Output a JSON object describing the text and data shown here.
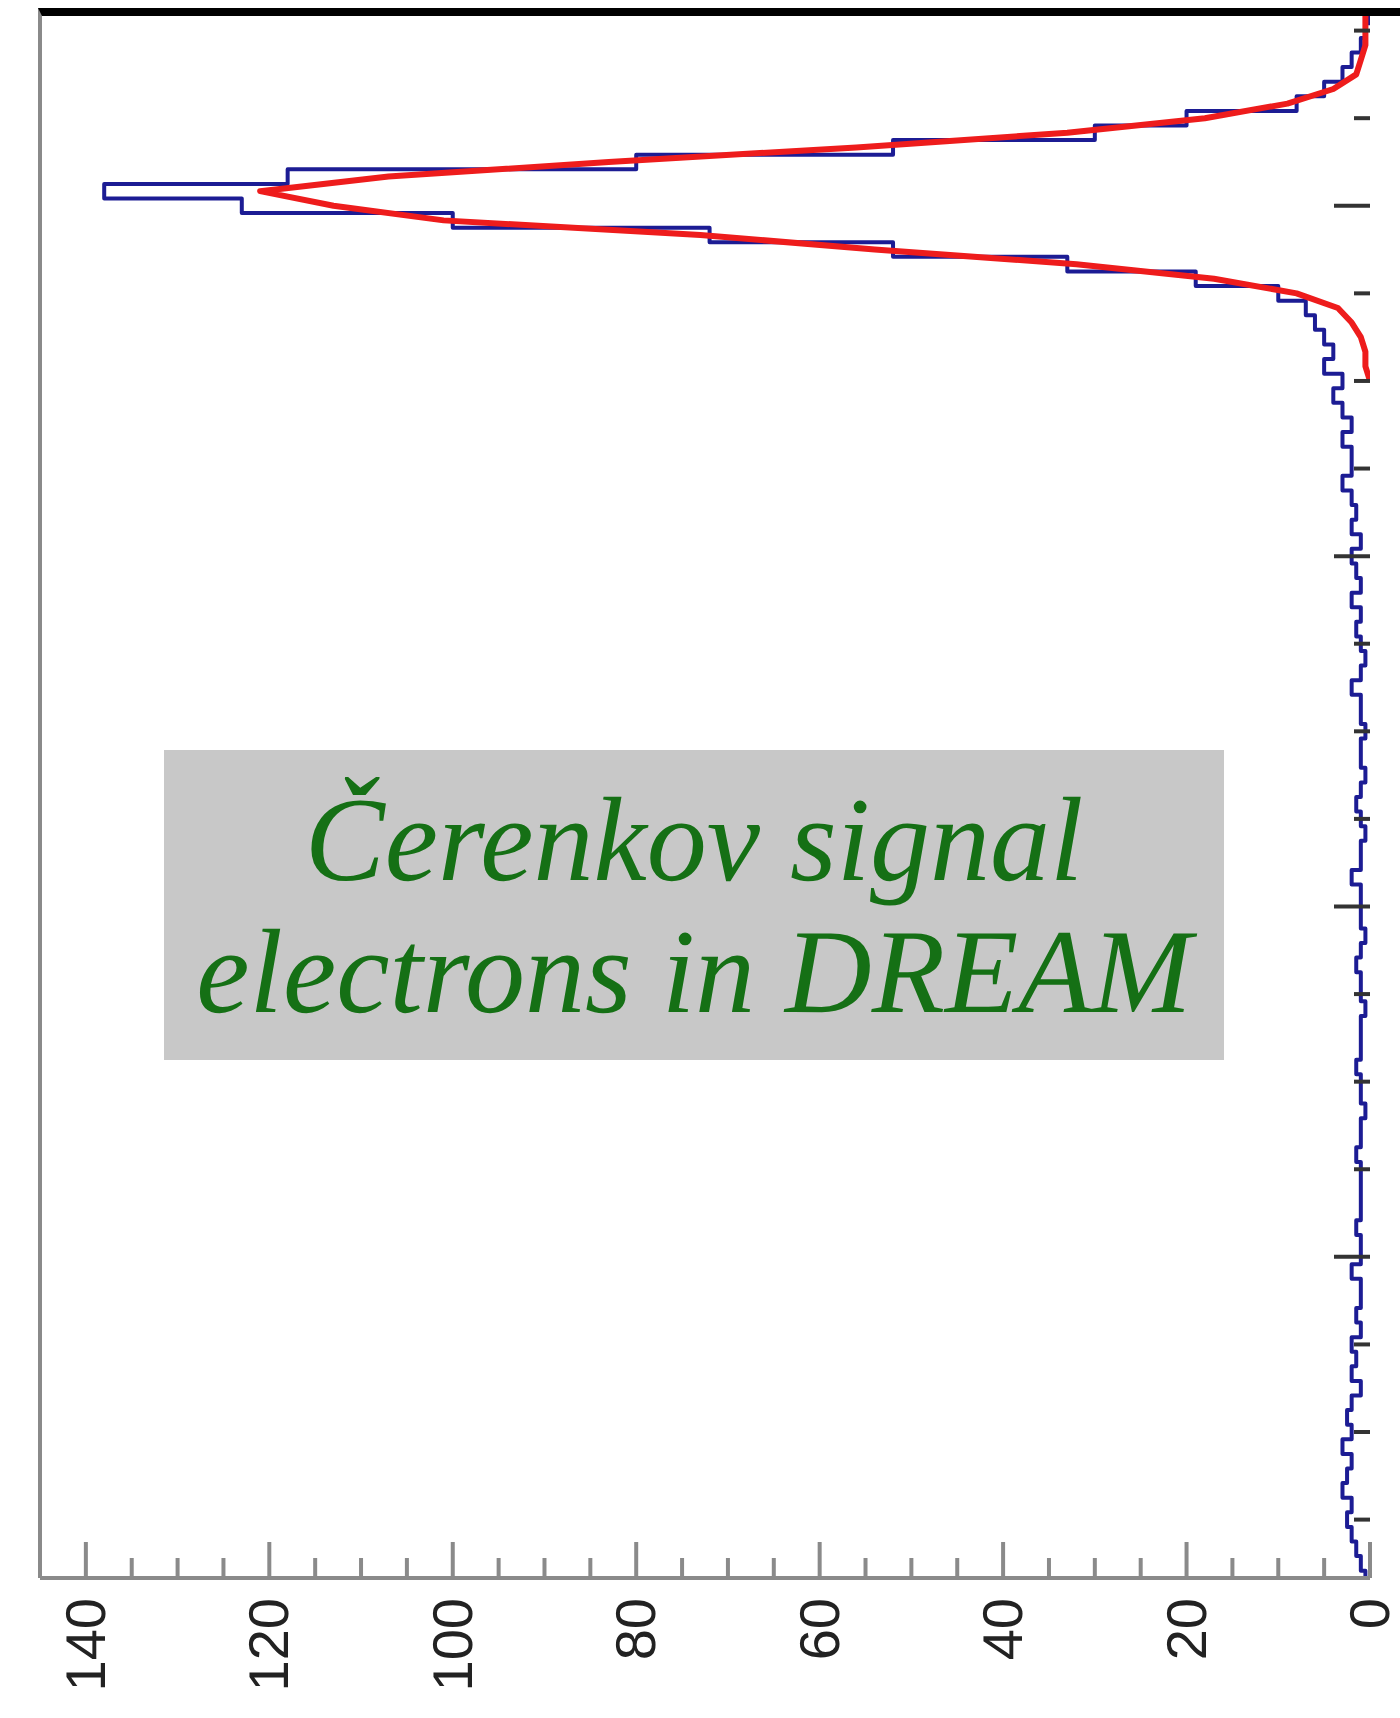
{
  "chart_data": {
    "type": "step",
    "orientation": "horizontal",
    "categories": [
      null,
      null,
      null,
      null,
      null,
      null,
      null,
      null,
      null,
      null,
      null,
      null,
      null,
      null,
      null,
      null,
      null,
      null,
      null,
      null,
      null,
      null,
      null,
      null,
      null,
      null,
      null,
      null,
      null,
      null,
      null,
      null,
      null,
      null,
      null,
      null,
      null,
      null,
      null,
      null,
      null,
      null,
      null,
      null,
      null,
      null,
      null,
      null,
      null,
      null,
      null,
      null,
      null,
      null,
      null,
      null,
      null,
      null,
      null,
      null,
      null,
      null,
      null,
      null,
      null,
      null,
      null,
      null,
      null,
      null,
      null,
      null,
      null,
      null,
      null,
      null,
      null,
      null,
      null,
      null,
      null,
      null,
      null,
      null,
      null,
      null,
      null,
      null,
      null,
      null,
      null,
      null,
      null,
      null,
      null,
      null,
      null,
      null,
      null,
      null,
      null,
      null,
      null,
      null,
      null,
      null,
      null,
      null
    ],
    "series": [
      {
        "type": "step",
        "color": "#1c1c94",
        "values": [
          0,
          0.5,
          1,
          2,
          3,
          5,
          8,
          20,
          30,
          52,
          80,
          118,
          138,
          123,
          100,
          72,
          52,
          33,
          19,
          10,
          7,
          6,
          5,
          4,
          5,
          3,
          4,
          3,
          2,
          3,
          2,
          2,
          3,
          2,
          1.5,
          2,
          1,
          2,
          1.5,
          1,
          2,
          1,
          1.5,
          1,
          0.5,
          1,
          2,
          1,
          1,
          0.5,
          1,
          1,
          0.5,
          1,
          1.5,
          1,
          0.5,
          1,
          1,
          2,
          1,
          1,
          1,
          0.5,
          1,
          1.5,
          1,
          1,
          0.5,
          1,
          1,
          1,
          1.5,
          1,
          1,
          0.5,
          1,
          1,
          1.5,
          1,
          1,
          1,
          1,
          1.5,
          1,
          1,
          2,
          1,
          1,
          1.5,
          1,
          2,
          1.5,
          2,
          1,
          2,
          2.5,
          2,
          3,
          2,
          2.5,
          3,
          2,
          2.5,
          2,
          1.5,
          1,
          0.5
        ]
      },
      {
        "type": "line",
        "color": "#ee1c1c",
        "values": [
          0.5,
          0.5,
          0.5,
          1,
          1.5,
          4,
          9,
          18,
          33,
          56,
          83,
          107,
          121,
          113,
          101,
          73,
          54,
          32,
          17,
          8,
          3.5,
          2,
          1,
          0.5,
          0.5,
          0,
          null,
          null,
          null,
          null,
          null,
          null,
          null,
          null,
          null,
          null,
          null,
          null,
          null,
          null,
          null,
          null,
          null,
          null,
          null,
          null,
          null,
          null,
          null,
          null,
          null,
          null,
          null,
          null,
          null,
          null,
          null,
          null,
          null,
          null,
          null,
          null,
          null,
          null,
          null,
          null,
          null,
          null,
          null,
          null,
          null,
          null,
          null,
          null,
          null,
          null,
          null,
          null,
          null,
          null,
          null,
          null,
          null,
          null,
          null,
          null,
          null,
          null,
          null,
          null,
          null,
          null,
          null,
          null,
          null,
          null,
          null,
          null,
          null,
          null,
          null,
          null,
          null,
          null,
          null,
          null,
          null,
          null
        ]
      }
    ],
    "xlim": [
      145,
      0
    ],
    "xticks": [
      140,
      {
        "value": 135,
        "label": null
      },
      {
        "value": 130,
        "label": null
      },
      {
        "value": 125,
        "label": null
      },
      120,
      {
        "value": 115,
        "label": null
      },
      {
        "value": 110,
        "label": null
      },
      {
        "value": 105,
        "label": null
      },
      100,
      {
        "value": 95,
        "label": null
      },
      {
        "value": 90,
        "label": null
      },
      {
        "value": 85,
        "label": null
      },
      80,
      {
        "value": 75,
        "label": null
      },
      {
        "value": 70,
        "label": null
      },
      {
        "value": 65,
        "label": null
      },
      60,
      {
        "value": 55,
        "label": null
      },
      {
        "value": 50,
        "label": null
      },
      {
        "value": 45,
        "label": null
      },
      40,
      {
        "value": 35,
        "label": null
      },
      {
        "value": 30,
        "label": null
      },
      {
        "value": 25,
        "label": null
      },
      20,
      {
        "value": 15,
        "label": null
      },
      {
        "value": 10,
        "label": null
      },
      {
        "value": 5,
        "label": null
      },
      0
    ],
    "annotations": [
      "Čerenkov signal electrons in DREAM"
    ]
  }
}
